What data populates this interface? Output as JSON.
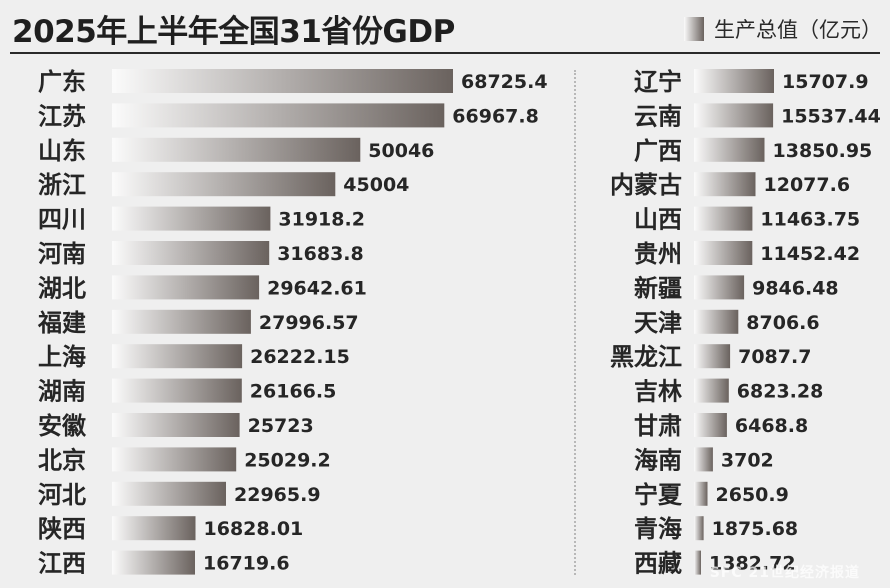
{
  "title": "2025年上半年全国31省份GDP",
  "legend": {
    "label": "生产总值（亿元）"
  },
  "colors": {
    "bar_light": "#fbfbfb",
    "bar_dark": "#6a625e",
    "text": "#262626",
    "background": "#efefef"
  },
  "watermark": "SFC 21世纪经济报道",
  "chart_data": {
    "type": "bar",
    "orientation": "horizontal",
    "title": "2025年上半年全国31省份GDP",
    "legend": [
      "生产总值（亿元）"
    ],
    "legend_position": "top-right",
    "grid": false,
    "unit": "亿元",
    "xlim": [
      0,
      70000
    ],
    "columns": [
      {
        "categories": [
          "广东",
          "江苏",
          "山东",
          "浙江",
          "四川",
          "河南",
          "湖北",
          "福建",
          "上海",
          "湖南",
          "安徽",
          "北京",
          "河北",
          "陕西",
          "江西"
        ],
        "values": [
          68725.4,
          66967.8,
          50046,
          45004,
          31918.2,
          31683.8,
          29642.61,
          27996.57,
          26222.15,
          26166.5,
          25723,
          25029.2,
          22965.9,
          16828.01,
          16719.6
        ],
        "value_labels": [
          "68725.4",
          "66967.8",
          "50046",
          "45004",
          "31918.2",
          "31683.8",
          "29642.61",
          "27996.57",
          "26222.15",
          "26166.5",
          "25723",
          "25029.2",
          "22965.9",
          "16828.01",
          "16719.6"
        ]
      },
      {
        "categories": [
          "辽宁",
          "云南",
          "广西",
          "内蒙古",
          "山西",
          "贵州",
          "新疆",
          "天津",
          "黑龙江",
          "吉林",
          "甘肃",
          "海南",
          "宁夏",
          "青海",
          "西藏"
        ],
        "values": [
          15707.9,
          15537.44,
          13850.95,
          12077.6,
          11463.75,
          11452.42,
          9846.48,
          8706.6,
          7087.7,
          6823.28,
          6468.8,
          3702,
          2650.9,
          1875.68,
          1382.72
        ],
        "value_labels": [
          "15707.9",
          "15537.44",
          "13850.95",
          "12077.6",
          "11463.75",
          "11452.42",
          "9846.48",
          "8706.6",
          "7087.7",
          "6823.28",
          "6468.8",
          "3702",
          "2650.9",
          "1875.68",
          "1382.72"
        ]
      }
    ]
  }
}
